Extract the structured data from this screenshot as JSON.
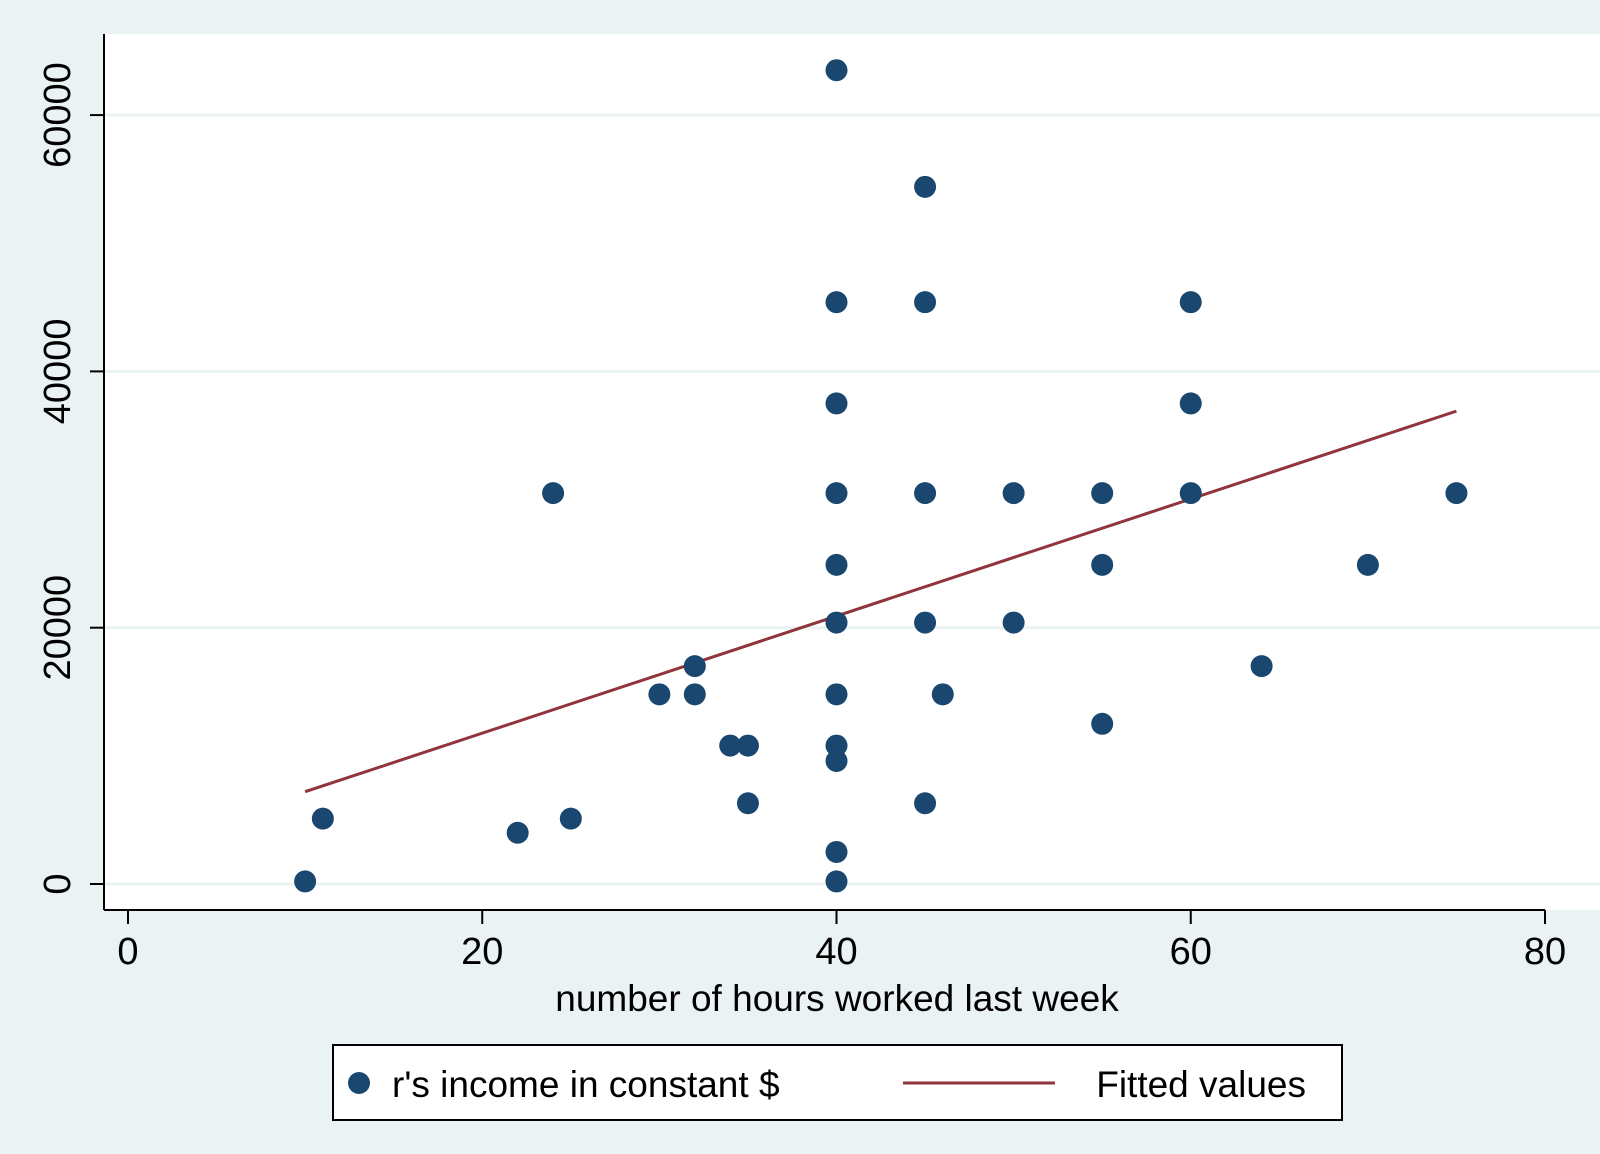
{
  "chart_data": {
    "type": "scatter",
    "xlabel": "number of hours worked last week",
    "ylabel": "",
    "xlim": [
      0,
      80
    ],
    "ylim": [
      0,
      65000
    ],
    "x_ticks": [
      0,
      20,
      40,
      60,
      80
    ],
    "y_ticks": [
      0,
      20000,
      40000,
      60000
    ],
    "grid": "horizontal",
    "legend_position": "bottom",
    "colors": {
      "marker": "#1a476f",
      "fit_line": "#90353b",
      "plot_background": "#ffffff",
      "outer_background": "#eaf2f3",
      "gridline": "#eaf2f3"
    },
    "series": [
      {
        "name": "r's income in constant $",
        "type": "scatter",
        "points": [
          {
            "x": 10,
            "y": 200
          },
          {
            "x": 11,
            "y": 5100
          },
          {
            "x": 22,
            "y": 4000
          },
          {
            "x": 24,
            "y": 30500
          },
          {
            "x": 25,
            "y": 5100
          },
          {
            "x": 30,
            "y": 14800
          },
          {
            "x": 32,
            "y": 17000
          },
          {
            "x": 32,
            "y": 14800
          },
          {
            "x": 34,
            "y": 10800
          },
          {
            "x": 35,
            "y": 10800
          },
          {
            "x": 35,
            "y": 6300
          },
          {
            "x": 40,
            "y": 63500
          },
          {
            "x": 40,
            "y": 45400
          },
          {
            "x": 40,
            "y": 37500
          },
          {
            "x": 40,
            "y": 30500
          },
          {
            "x": 40,
            "y": 24900
          },
          {
            "x": 40,
            "y": 20400
          },
          {
            "x": 40,
            "y": 14800
          },
          {
            "x": 40,
            "y": 10800
          },
          {
            "x": 40,
            "y": 9600
          },
          {
            "x": 40,
            "y": 2500
          },
          {
            "x": 40,
            "y": 200
          },
          {
            "x": 45,
            "y": 54400
          },
          {
            "x": 45,
            "y": 45400
          },
          {
            "x": 45,
            "y": 30500
          },
          {
            "x": 45,
            "y": 20400
          },
          {
            "x": 45,
            "y": 6300
          },
          {
            "x": 46,
            "y": 14800
          },
          {
            "x": 50,
            "y": 30500
          },
          {
            "x": 50,
            "y": 20400
          },
          {
            "x": 55,
            "y": 30500
          },
          {
            "x": 55,
            "y": 24900
          },
          {
            "x": 55,
            "y": 12500
          },
          {
            "x": 60,
            "y": 45400
          },
          {
            "x": 60,
            "y": 37500
          },
          {
            "x": 60,
            "y": 30500
          },
          {
            "x": 64,
            "y": 17000
          },
          {
            "x": 70,
            "y": 24900
          },
          {
            "x": 75,
            "y": 30500
          }
        ]
      },
      {
        "name": "Fitted values",
        "type": "line",
        "points": [
          {
            "x": 10,
            "y": 7200
          },
          {
            "x": 75,
            "y": 36900
          }
        ]
      }
    ]
  }
}
